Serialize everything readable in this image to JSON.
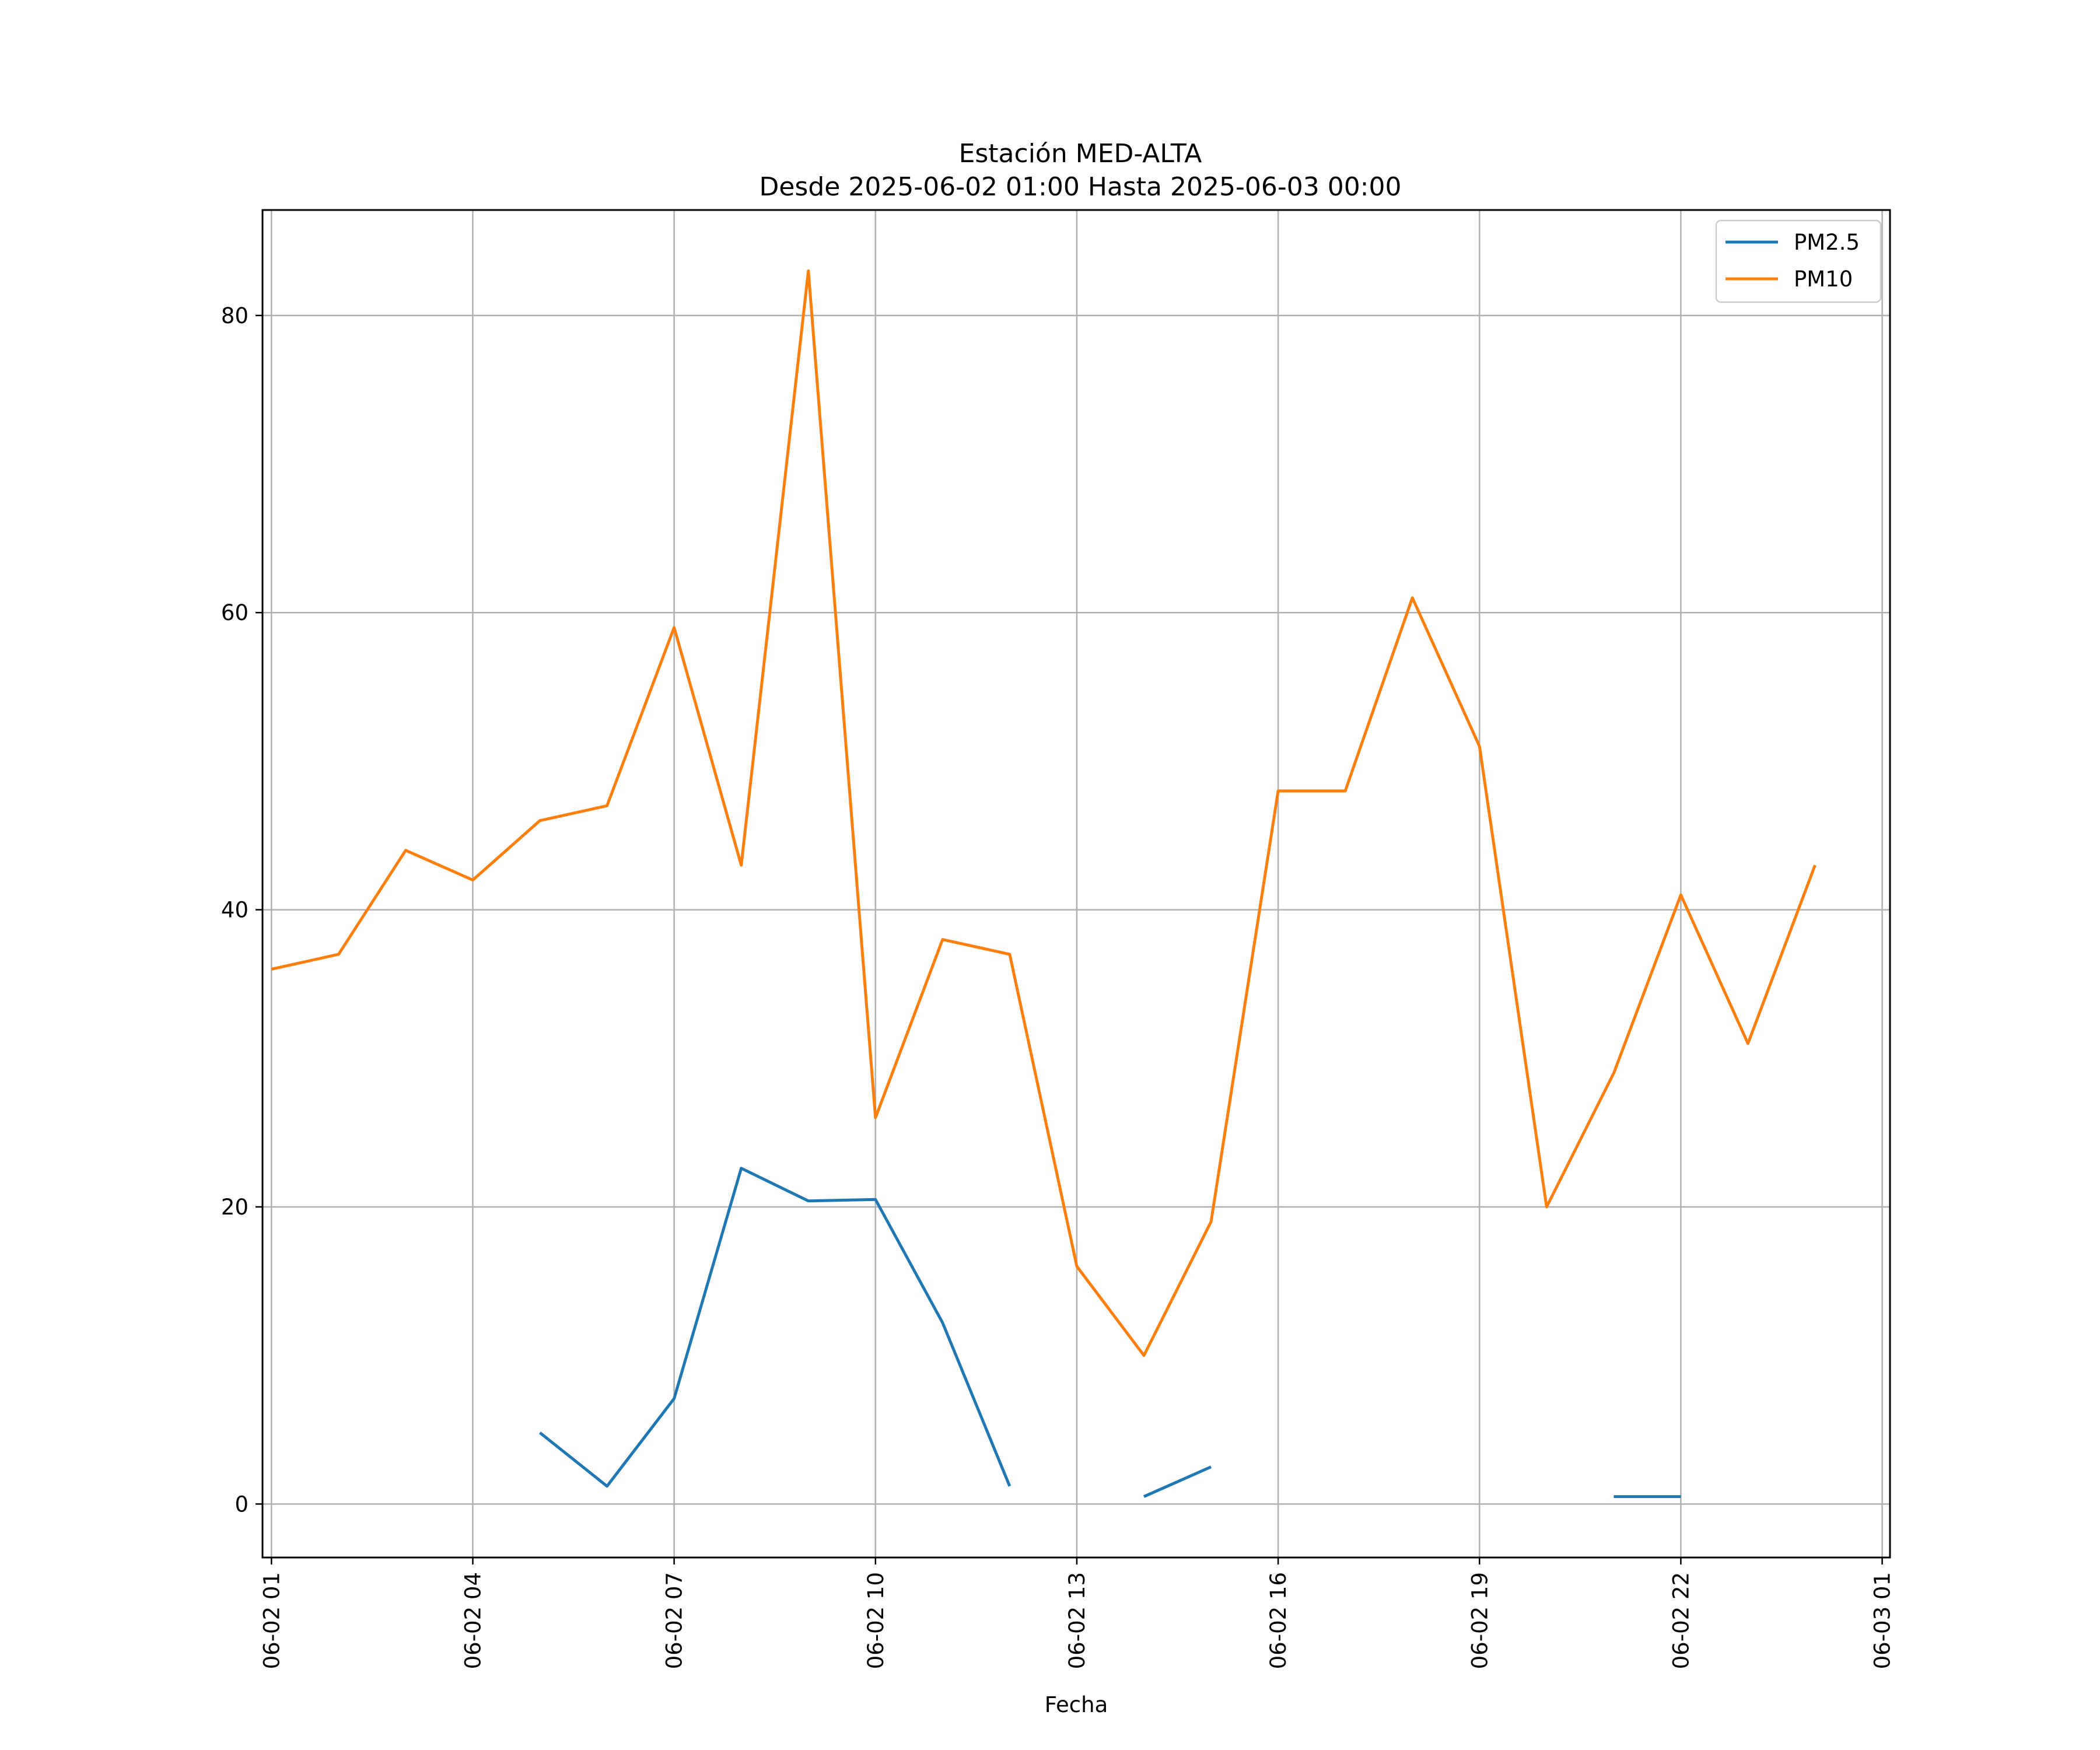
{
  "chart_data": {
    "type": "line",
    "title": "Estación MED-ALTA",
    "subtitle": "Desde 2025-06-02 01:00 Hasta 2025-06-03 00:00",
    "xlabel": "Fecha",
    "ylabel": "",
    "x": [
      "06-02 01",
      "06-02 02",
      "06-02 03",
      "06-02 04",
      "06-02 05",
      "06-02 06",
      "06-02 07",
      "06-02 08",
      "06-02 09",
      "06-02 10",
      "06-02 11",
      "06-02 12",
      "06-02 13",
      "06-02 14",
      "06-02 15",
      "06-02 16",
      "06-02 17",
      "06-02 18",
      "06-02 19",
      "06-02 20",
      "06-02 21",
      "06-02 22",
      "06-02 23",
      "06-03 00"
    ],
    "x_ticks": [
      "06-02 01",
      "06-02 04",
      "06-02 07",
      "06-02 10",
      "06-02 13",
      "06-02 16",
      "06-02 19",
      "06-02 22",
      "06-03 01"
    ],
    "y_ticks": [
      "0",
      "20",
      "40",
      "60",
      "80"
    ],
    "ylim": [
      -3.6,
      87.1
    ],
    "xlim": [
      "06-02 00:52",
      "06-03 01:07"
    ],
    "grid": true,
    "legend_position": "top-right",
    "series": [
      {
        "name": "PM2.5",
        "color": "#1f77b4",
        "values": [
          null,
          null,
          null,
          null,
          4.8,
          1.2,
          7.1,
          22.6,
          20.4,
          20.5,
          12.2,
          1.2,
          null,
          0.5,
          2.5,
          null,
          null,
          null,
          null,
          null,
          0.5,
          0.5,
          null,
          null
        ]
      },
      {
        "name": "PM10",
        "color": "#ff7f0e",
        "values": [
          36,
          37,
          44,
          42,
          46,
          47,
          59,
          43,
          83,
          26,
          38,
          37,
          16,
          10,
          19,
          48,
          48,
          61,
          51,
          20,
          29,
          41,
          31,
          43
        ]
      }
    ]
  }
}
